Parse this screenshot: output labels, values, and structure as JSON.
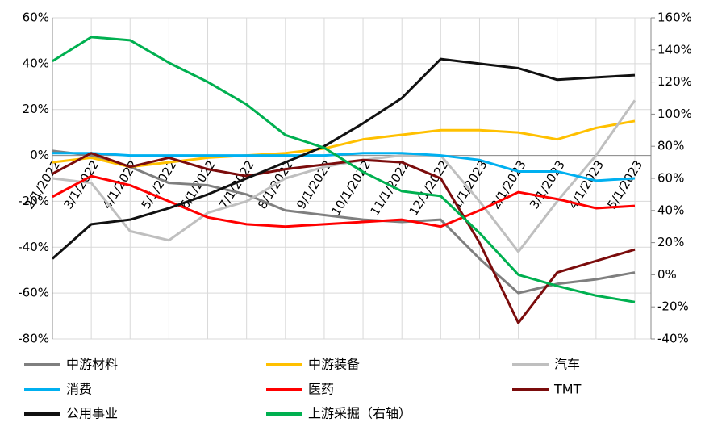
{
  "chart_data": {
    "type": "line",
    "categories": [
      "2/1/2022",
      "3/1/2022",
      "4/1/2022",
      "5/1/2022",
      "6/1/2022",
      "7/1/2022",
      "8/1/2022",
      "9/1/2022",
      "10/1/2022",
      "11/1/2022",
      "12/1/2022",
      "1/1/2023",
      "2/1/2023",
      "3/1/2023",
      "4/1/2023",
      "5/1/2023"
    ],
    "ylim": [
      -80,
      60
    ],
    "yticks": [
      {
        "value": -80,
        "label": "-80%"
      },
      {
        "value": -60,
        "label": "-60%"
      },
      {
        "value": -40,
        "label": "-40%"
      },
      {
        "value": -20,
        "label": "-20%"
      },
      {
        "value": 0,
        "label": "0%"
      },
      {
        "value": 20,
        "label": "20%"
      },
      {
        "value": 40,
        "label": "40%"
      },
      {
        "value": 60,
        "label": "60%"
      }
    ],
    "y2lim": [
      -40,
      160
    ],
    "y2ticks": [
      {
        "value": -40,
        "label": "-40%"
      },
      {
        "value": -20,
        "label": "-20%"
      },
      {
        "value": 0,
        "label": "0%"
      },
      {
        "value": 20,
        "label": "20%"
      },
      {
        "value": 40,
        "label": "40%"
      },
      {
        "value": 60,
        "label": "60%"
      },
      {
        "value": 80,
        "label": "80%"
      },
      {
        "value": 100,
        "label": "100%"
      },
      {
        "value": 120,
        "label": "120%"
      },
      {
        "value": 140,
        "label": "140%"
      },
      {
        "value": 160,
        "label": "160%"
      }
    ],
    "grid": true,
    "series": [
      {
        "name": "中游材料",
        "color": "#7f7f7f",
        "values": [
          2,
          0,
          -5,
          -12,
          -13,
          -17,
          -24,
          -26,
          -28,
          -29,
          -28,
          -45,
          -60,
          -56,
          -54,
          -51
        ]
      },
      {
        "name": "中游装备",
        "color": "#ffc000",
        "values": [
          -3,
          -1,
          -5,
          -3,
          -1,
          0,
          1,
          3,
          7,
          9,
          11,
          11,
          10,
          7,
          12,
          15
        ]
      },
      {
        "name": "汽车",
        "color": "#bfbfbf",
        "values": [
          -10,
          -12,
          -33,
          -37,
          -25,
          -20,
          -10,
          -5,
          -2,
          0,
          0,
          -20,
          -42,
          -20,
          0,
          24
        ]
      },
      {
        "name": "消费",
        "color": "#00b0f0",
        "values": [
          1,
          1,
          0,
          0,
          0,
          0,
          0,
          0,
          1,
          1,
          0,
          -2,
          -7,
          -7,
          -11,
          -10
        ]
      },
      {
        "name": "医药",
        "color": "#ff0000",
        "values": [
          -18,
          -9,
          -13,
          -20,
          -27,
          -30,
          -31,
          -30,
          -29,
          -28,
          -31,
          -24,
          -16,
          -19,
          -23,
          -22
        ]
      },
      {
        "name": "TMT",
        "color": "#7b0c0c",
        "values": [
          -8,
          1,
          -5,
          -1,
          -6,
          -9,
          -6,
          -4,
          -2,
          -3,
          -10,
          -38,
          -73,
          -51,
          -46,
          -41
        ]
      },
      {
        "name": "公用事业",
        "color": "#111111",
        "values": [
          -45,
          -30,
          -28,
          -23,
          -17,
          -10,
          -3,
          4,
          14,
          25,
          42,
          40,
          38,
          33,
          34,
          35
        ]
      },
      {
        "name": "上游采掘（右轴）",
        "color": "#00b050",
        "axis": "y2",
        "values": [
          133,
          148,
          146,
          132,
          120,
          106,
          87,
          79,
          64,
          52,
          49,
          26,
          0,
          -7,
          -13,
          -17
        ]
      }
    ]
  }
}
